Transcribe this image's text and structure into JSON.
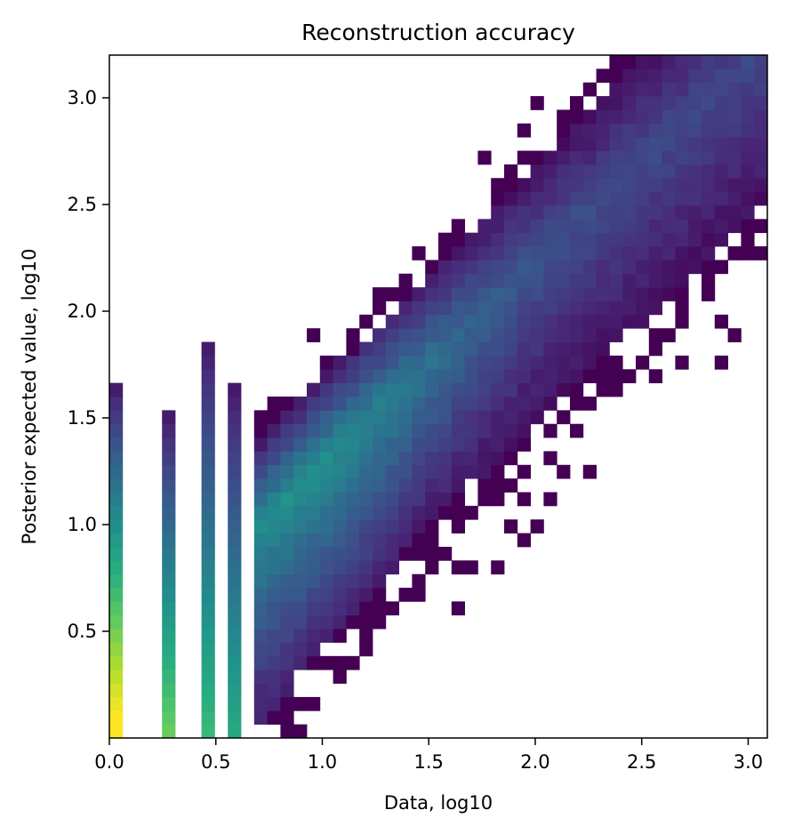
{
  "chart_data": {
    "type": "heatmap",
    "title": "Reconstruction accuracy",
    "xlabel": "Data, log10",
    "ylabel": "Posterior expected value, log10",
    "xlim": [
      0.0,
      3.09
    ],
    "ylim": [
      0.0,
      3.2
    ],
    "xticks": [
      "0.0",
      "0.5",
      "1.0",
      "1.5",
      "2.0",
      "2.5",
      "3.0"
    ],
    "yticks": [
      "0.5",
      "1.0",
      "1.5",
      "2.0",
      "2.5",
      "3.0"
    ],
    "xtick_values": [
      0.0,
      0.5,
      1.0,
      1.5,
      2.0,
      2.5,
      3.0
    ],
    "ytick_values": [
      0.5,
      1.0,
      1.5,
      2.0,
      2.5,
      3.0
    ],
    "bins": 50,
    "colormap": "viridis",
    "colormap_stops": [
      "#440154",
      "#472d7b",
      "#3b528b",
      "#2c728e",
      "#21918c",
      "#28ae80",
      "#5ec962",
      "#addc30",
      "#fde725"
    ],
    "description": "2D histogram of log counts; density concentrated along the diagonal y=x, with vertical stripes at low discrete data values (0, 0.30, 0.48, 0.60) and a dense core near x≈0.9, y≈1.1",
    "stripes": [
      {
        "x": 0.0,
        "ymax": 1.65,
        "peak": 1.0
      },
      {
        "x": 0.301,
        "ymax": 1.52,
        "peak": 0.72
      },
      {
        "x": 0.477,
        "ymax": 1.85,
        "peak": 0.62
      },
      {
        "x": 0.602,
        "ymax": 1.65,
        "peak": 0.55
      }
    ],
    "ridge": {
      "x_start": 0.7,
      "x_end": 3.09,
      "center_at_x_start": 1.0,
      "slope": 0.95,
      "peak_near": [
        0.9,
        1.1
      ]
    }
  }
}
